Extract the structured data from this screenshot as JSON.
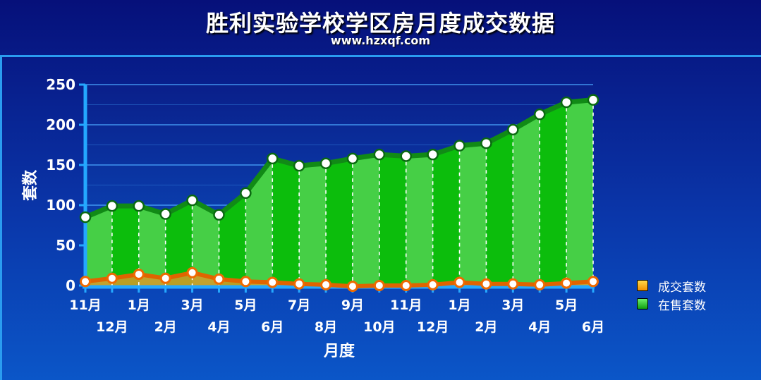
{
  "header": {
    "title": "胜利实验学校学区房月度成交数据",
    "subtitle": "www.hzxqf.com"
  },
  "colors": {
    "sale_area": "#22c42a",
    "sale_line": "#118a16",
    "deal_area": "#f0a000",
    "deal_line": "#e06400",
    "deal_marker": "#ee6a00"
  },
  "chart_data": {
    "type": "area",
    "title": "胜利实验学校学区房月度成交数据",
    "xlabel": "月度",
    "ylabel": "套数",
    "ylim": [
      0,
      250
    ],
    "yticks": [
      0,
      50,
      100,
      150,
      200,
      250
    ],
    "grid": true,
    "legend_position": "right",
    "categories": [
      "11月",
      "12月",
      "1月",
      "2月",
      "3月",
      "4月",
      "5月",
      "6月",
      "7月",
      "8月",
      "9月",
      "10月",
      "11月",
      "12月",
      "1月",
      "2月",
      "3月",
      "4月",
      "5月",
      "6月"
    ],
    "series": [
      {
        "name": "在售套数",
        "values": [
          85,
          99,
          99,
          89,
          106,
          88,
          115,
          158,
          149,
          152,
          158,
          163,
          161,
          163,
          174,
          177,
          194,
          213,
          228,
          231
        ]
      },
      {
        "name": "成交套数",
        "values": [
          5,
          9,
          14,
          9,
          16,
          8,
          5,
          4,
          2,
          1,
          -1,
          0,
          0,
          1,
          4,
          2,
          2,
          1,
          3,
          5
        ]
      }
    ]
  },
  "legend": [
    {
      "label": "成交套数",
      "color": "#f0a000"
    },
    {
      "label": "在售套数",
      "color": "#18b818"
    }
  ]
}
